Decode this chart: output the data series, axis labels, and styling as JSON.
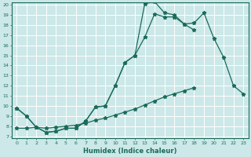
{
  "xlabel": "Humidex (Indice chaleur)",
  "background_color": "#cce8e8",
  "grid_color": "#ffffff",
  "line_color": "#1a6b5a",
  "line1_x": [
    0,
    1,
    2,
    3,
    4,
    5,
    6,
    7,
    8,
    9,
    10,
    11,
    12,
    13,
    14,
    15,
    16,
    17,
    18,
    19,
    20,
    21,
    22,
    23
  ],
  "line1_y": [
    9.8,
    9.0,
    7.9,
    7.4,
    7.5,
    7.8,
    7.8,
    8.5,
    9.9,
    10.0,
    12.0,
    14.3,
    15.0,
    20.1,
    20.3,
    19.2,
    19.0,
    18.1,
    17.5,
    null,
    null,
    null,
    null,
    null
  ],
  "line2_x": [
    0,
    1,
    2,
    3,
    4,
    5,
    6,
    7,
    8,
    9,
    10,
    11,
    12,
    13,
    14,
    15,
    16,
    17,
    18,
    19,
    20,
    21,
    22,
    23
  ],
  "line2_y": [
    9.8,
    9.0,
    7.9,
    7.4,
    7.5,
    7.8,
    7.8,
    8.5,
    9.9,
    10.0,
    12.0,
    14.3,
    15.0,
    16.8,
    19.1,
    18.8,
    18.8,
    18.1,
    18.2,
    19.2,
    16.7,
    14.8,
    12.0,
    11.2
  ],
  "line3_x": [
    0,
    1,
    2,
    3,
    4,
    5,
    6,
    7,
    8,
    9,
    10,
    11,
    12,
    13,
    14,
    15,
    16,
    17,
    18,
    19,
    20,
    21,
    22,
    23
  ],
  "line3_y": [
    7.8,
    7.8,
    7.9,
    7.8,
    7.9,
    8.0,
    8.1,
    8.3,
    8.6,
    8.8,
    9.1,
    9.4,
    9.7,
    10.1,
    10.5,
    10.9,
    11.2,
    11.5,
    11.8,
    null,
    null,
    null,
    null,
    null
  ],
  "ylim": [
    7,
    20
  ],
  "xlim": [
    -0.5,
    23.5
  ],
  "yticks": [
    7,
    8,
    9,
    10,
    11,
    12,
    13,
    14,
    15,
    16,
    17,
    18,
    19,
    20
  ],
  "xticks": [
    0,
    1,
    2,
    3,
    4,
    5,
    6,
    7,
    8,
    9,
    10,
    11,
    12,
    13,
    14,
    15,
    16,
    17,
    18,
    19,
    20,
    21,
    22,
    23
  ]
}
